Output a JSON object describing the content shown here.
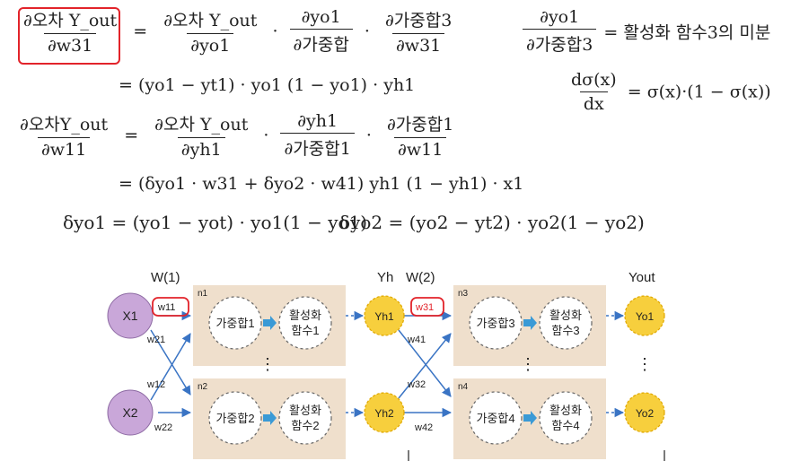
{
  "eq1": {
    "lhs_num": "∂오차 Y_out",
    "lhs_den": "∂w31",
    "t1_num": "∂오차 Y_out",
    "t1_den": "∂yo1",
    "t2_num": "∂yo1",
    "t2_den": "∂가중합",
    "t3_num": "∂가중합3",
    "t3_den": "∂w31",
    "line2": "= (yo1 − yt1) · yo1 (1 − yo1) · yh1"
  },
  "side": {
    "def_num": "∂yo1",
    "def_den": "∂가중합3",
    "def_rhs": "= 활성화 함수3의 미분",
    "sig_num": "dσ(x)",
    "sig_den": "dx",
    "sig_rhs": "= σ(x)·(1 − σ(x))"
  },
  "eq2": {
    "lhs_num": "∂오차Y_out",
    "lhs_den": "∂w11",
    "t1_num": "∂오차 Y_out",
    "t1_den": "∂yh1",
    "t2_num": "∂yh1",
    "t2_den": "∂가중합1",
    "t3_num": "∂가중합1",
    "t3_den": "∂w11",
    "line2": "= (δyo1 · w31 + δyo2 · w41) yh1 (1 − yh1) · x1"
  },
  "delta": {
    "d1": "δyo1 = (yo1 − yot) · yo1(1 − yo1)",
    "d2": "δyo2 = (yo2 − yt2) · yo2(1 − yo2)"
  },
  "diagram": {
    "w1_label": "W(1)",
    "w2_label": "W(2)",
    "yh_label": "Yh",
    "yout_label": "Yout",
    "inputs": [
      "X1",
      "X2"
    ],
    "hidden": [
      "Yh1",
      "Yh2"
    ],
    "outputs": [
      "Yo1",
      "Yo2"
    ],
    "n_labels": [
      "n1",
      "n2",
      "n3",
      "n4"
    ],
    "wsum": [
      "가중합1",
      "가중합2",
      "가중합3",
      "가중합4"
    ],
    "act_top": [
      "활성화",
      "활성화",
      "활성화",
      "활성화"
    ],
    "act_bot": [
      "함수1",
      "함수2",
      "함수3",
      "함수4"
    ],
    "w_layer1": [
      "w11",
      "w21",
      "w12",
      "w22"
    ],
    "w_layer2": [
      "w31",
      "w41",
      "w32",
      "w42"
    ],
    "ellipsis": "⋮",
    "colors": {
      "input": "#c9a7d9",
      "hidden": "#f7cf3d",
      "box": "#efdfcc",
      "arrow": "#3a74c4",
      "red": "#e2232a"
    }
  }
}
